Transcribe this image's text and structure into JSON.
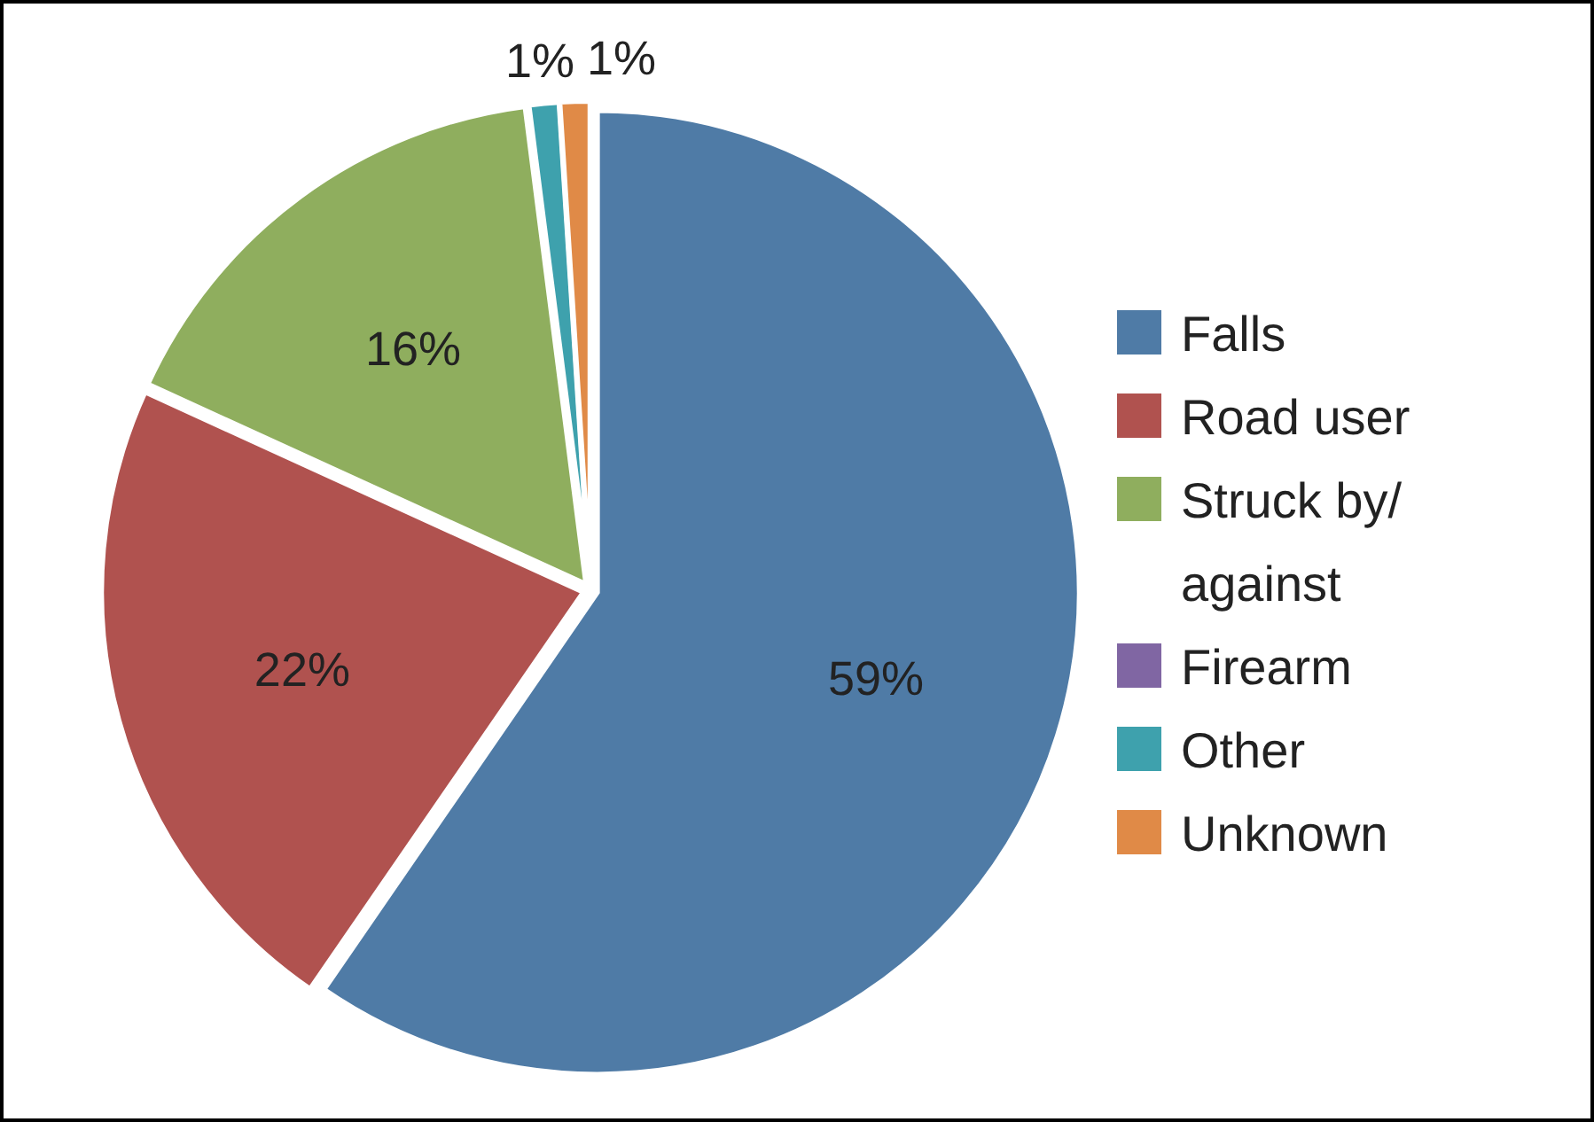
{
  "chart_data": {
    "type": "pie",
    "categories": [
      "Falls",
      "Road user",
      "Struck by/ against",
      "Firearm",
      "Other",
      "Unknown"
    ],
    "values": [
      59,
      22,
      16,
      0,
      1,
      1
    ],
    "value_labels": [
      "59%",
      "22%",
      "16%",
      null,
      "1%",
      "1%"
    ],
    "colors": [
      "#4f7ba6",
      "#b0524f",
      "#8fae5e",
      "#8066a3",
      "#3ea1ad",
      "#e08a47"
    ],
    "legend": "right"
  }
}
